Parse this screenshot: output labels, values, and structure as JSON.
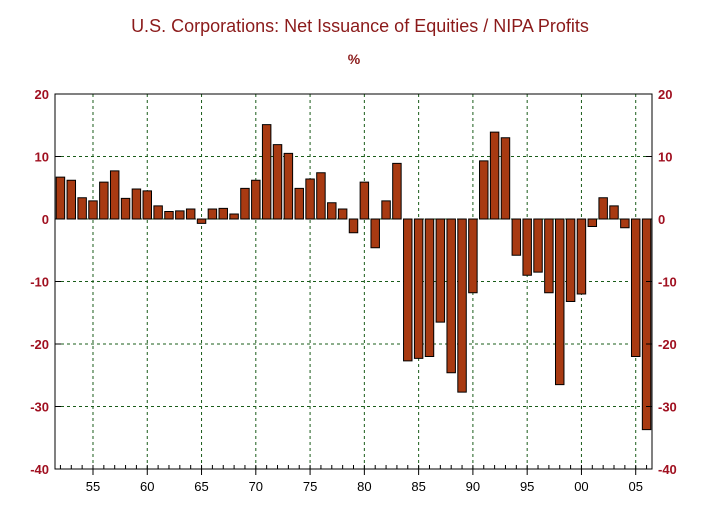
{
  "chart_data": {
    "type": "bar",
    "title": "U.S. Corporations: Net Issuance of Equities / NIPA Profits",
    "unit": "%",
    "x": [
      1952,
      1953,
      1954,
      1955,
      1956,
      1957,
      1958,
      1959,
      1960,
      1961,
      1962,
      1963,
      1964,
      1965,
      1966,
      1967,
      1968,
      1969,
      1970,
      1971,
      1972,
      1973,
      1974,
      1975,
      1976,
      1977,
      1978,
      1979,
      1980,
      1981,
      1982,
      1983,
      1984,
      1985,
      1986,
      1987,
      1988,
      1989,
      1990,
      1991,
      1992,
      1993,
      1994,
      1995,
      1996,
      1997,
      1998,
      1999,
      2000,
      2001,
      2002,
      2003,
      2004,
      2005,
      2006
    ],
    "values": [
      6.7,
      6.2,
      3.4,
      2.9,
      5.9,
      7.7,
      3.3,
      4.8,
      4.5,
      2.1,
      1.2,
      1.3,
      1.6,
      -0.7,
      1.6,
      1.7,
      0.8,
      4.9,
      6.2,
      15.1,
      11.9,
      10.5,
      4.9,
      6.4,
      7.4,
      2.6,
      1.6,
      -2.2,
      5.9,
      -4.6,
      2.9,
      8.9,
      -22.7,
      -22.3,
      -22.0,
      -16.5,
      -24.6,
      -27.7,
      -11.8,
      9.3,
      13.9,
      13.0,
      -5.8,
      -9.0,
      -8.5,
      -11.8,
      -26.5,
      -13.2,
      -12.0,
      -1.2,
      3.4,
      2.1,
      -1.4,
      -22.0,
      -33.7
    ],
    "xticks": [
      1955,
      1960,
      1965,
      1970,
      1975,
      1980,
      1985,
      1990,
      1995,
      2000,
      2005
    ],
    "xtick_labels": [
      "55",
      "60",
      "65",
      "70",
      "75",
      "80",
      "85",
      "90",
      "95",
      "00",
      "05"
    ],
    "yticks": [
      -40,
      -30,
      -20,
      -10,
      0,
      10,
      20
    ],
    "ylim": [
      -40,
      20
    ],
    "xlim": [
      1951.5,
      2006.5
    ],
    "grid": true,
    "bar_color": "#a83a12",
    "title_color": "#8b1a1a",
    "ytick_color": "#a01020"
  }
}
